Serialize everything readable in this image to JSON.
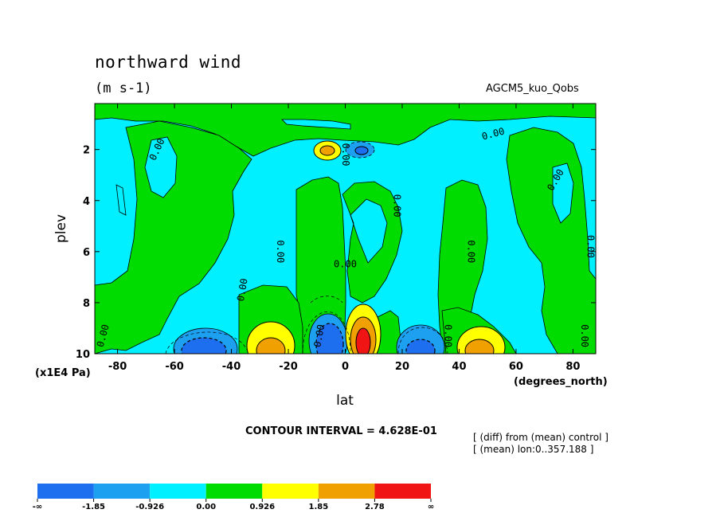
{
  "header": {
    "title": "northward wind",
    "units": "(m s-1)",
    "run_label": "AGCM5_kuo_Qobs"
  },
  "footer": {
    "contour_interval": "CONTOUR INTERVAL = 4.628E-01",
    "diff_note": "[ (diff) from (mean) control ]",
    "mean_note": "[ (mean) lon:0..357.188 ]"
  },
  "chart_data": {
    "type": "contour",
    "title": "northward wind",
    "units": "(m s-1)",
    "xlabel": "lat",
    "xunit": "(degrees_north)",
    "ylabel": "plev",
    "yunit": "(x1E4 Pa)",
    "xlim": [
      -88,
      88
    ],
    "ylim": [
      10,
      0.2
    ],
    "x_ticks": [
      -80,
      -60,
      -40,
      -20,
      0,
      20,
      40,
      60,
      80
    ],
    "x_tick_labels": [
      "-80",
      "-60",
      "-40",
      "-20",
      "0",
      "20",
      "40",
      "60",
      "80"
    ],
    "y_ticks": [
      2,
      4,
      6,
      8,
      10
    ],
    "y_tick_labels": [
      "2",
      "4",
      "6",
      "8",
      "10"
    ],
    "contour_interval": 0.4628,
    "contour_line_labels": [
      "0.00",
      "0.00",
      "0.00",
      "0.00",
      "0.00",
      "0.00",
      "0.00",
      "0.00",
      "0.00",
      "0.00",
      "0.00",
      "0.00",
      "0.00",
      "0.00"
    ],
    "colorbar": {
      "levels": [
        "-∞",
        "-1.85",
        "-0.926",
        "0.00",
        "0.926",
        "1.85",
        "2.78",
        "∞"
      ],
      "colors": [
        "#1e6ef0",
        "#1ea0f0",
        "#00f0ff",
        "#00dc00",
        "#ffff00",
        "#f0a000",
        "#f01414"
      ]
    },
    "features": [
      {
        "lat": -48,
        "plev": 9.8,
        "value": -1.4
      },
      {
        "lat": -27,
        "plev": 9.7,
        "value": 2.1
      },
      {
        "lat": -5,
        "plev": 9.5,
        "value": -1.7
      },
      {
        "lat": 6,
        "plev": 9.3,
        "value": 2.3
      },
      {
        "lat": 29,
        "plev": 9.7,
        "value": -1.3
      },
      {
        "lat": 47,
        "plev": 9.7,
        "value": 1.6
      },
      {
        "lat": -6,
        "plev": 2.0,
        "value": 1.5
      },
      {
        "lat": 6,
        "plev": 2.0,
        "value": -1.0
      }
    ]
  }
}
